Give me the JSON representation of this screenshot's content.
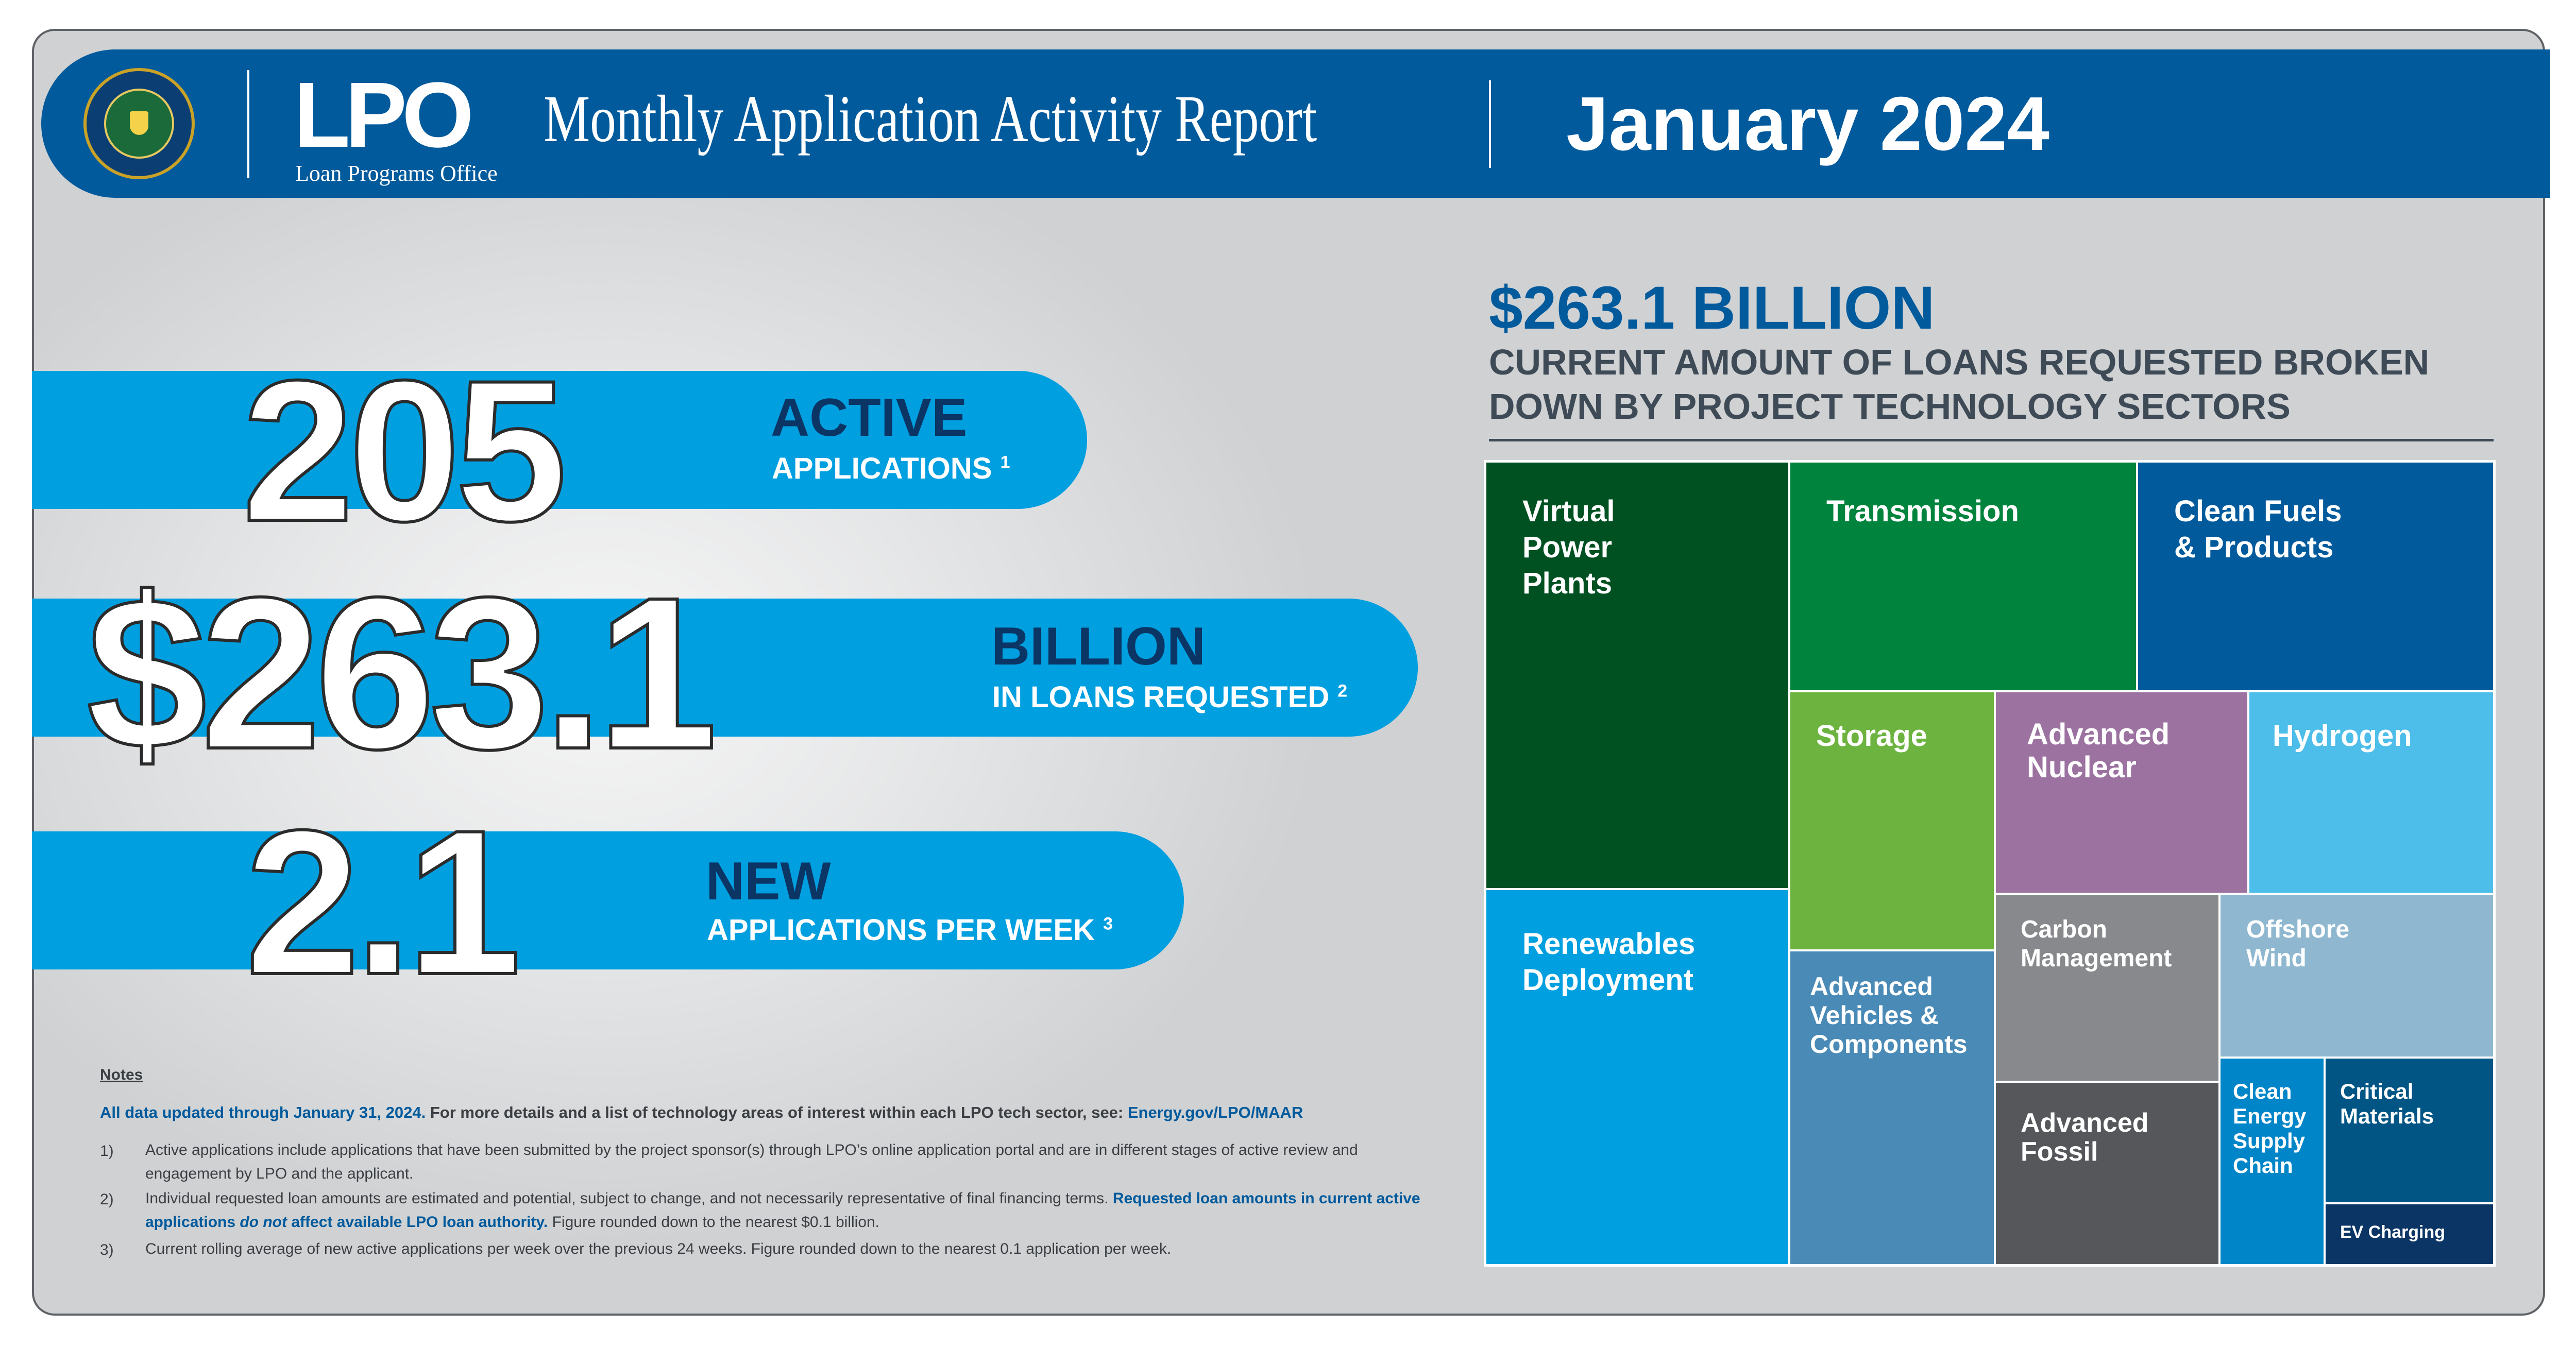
{
  "header": {
    "logo_text": "LPO",
    "logo_subtitle": "Loan Programs Office",
    "title": "Monthly Application Activity Report",
    "date": "January 2024"
  },
  "stats": [
    {
      "value": "205",
      "label_main": "ACTIVE",
      "label_sub": "APPLICATIONS",
      "footnote": "1"
    },
    {
      "value": "$263.1",
      "label_main": "BILLION",
      "label_sub": "IN LOANS REQUESTED",
      "footnote": "2"
    },
    {
      "value": "2.1",
      "label_main": "NEW",
      "label_sub": "APPLICATIONS PER WEEK",
      "footnote": "3"
    }
  ],
  "notes": {
    "title": "Notes",
    "lead_bold": "All data updated through January 31, 2024.",
    "lead_rest": " For more details and a list of technology areas of interest within each LPO tech sector, see: ",
    "lead_link": "Energy.gov/LPO/MAAR",
    "items": [
      {
        "num": "1)",
        "text": "Active applications include applications that have been submitted by the project sponsor(s) through LPO’s online application portal and are in different stages of active review and engagement by LPO and the applicant."
      },
      {
        "num": "2)",
        "text_pre": "Individual requested loan amounts are estimated and potential, subject to change, and not necessarily representative of final financing terms. ",
        "text_hl1": "Requested loan amounts in current active applications ",
        "text_hl_em": "do not",
        "text_hl2": " affect available LPO loan authority.",
        "text_post": " Figure rounded down to the nearest $0.1 billion."
      },
      {
        "num": "3)",
        "text": "Current rolling average of new active applications per week over the previous 24 weeks. Figure rounded down to the nearest 0.1 application per week."
      }
    ]
  },
  "breakdown": {
    "total": "$263.1 BILLION",
    "subtitle": "CURRENT AMOUNT OF LOANS REQUESTED BROKEN DOWN BY PROJECT TECHNOLOGY SECTORS",
    "sectors": [
      {
        "name": "Virtual Power Plants",
        "color": "#005121"
      },
      {
        "name": "Renewables Deployment",
        "color": "#009fe0"
      },
      {
        "name": "Transmission",
        "color": "#00843d"
      },
      {
        "name": "Clean Fuels & Products",
        "color": "#005a9c"
      },
      {
        "name": "Storage",
        "color": "#6db33f"
      },
      {
        "name": "Advanced Nuclear",
        "color": "#9b72a0"
      },
      {
        "name": "Hydrogen",
        "color": "#4dbde9"
      },
      {
        "name": "Advanced Vehicles & Components",
        "color": "#4a8ab6"
      },
      {
        "name": "Carbon Management",
        "color": "#87898c"
      },
      {
        "name": "Offshore Wind",
        "color": "#8fb8d0"
      },
      {
        "name": "Advanced Fossil",
        "color": "#55575b"
      },
      {
        "name": "Clean Energy Supply Chain",
        "color": "#0085c8"
      },
      {
        "name": "Critical Materials",
        "color": "#005585"
      },
      {
        "name": "EV Charging",
        "color": "#0b3564"
      }
    ]
  }
}
